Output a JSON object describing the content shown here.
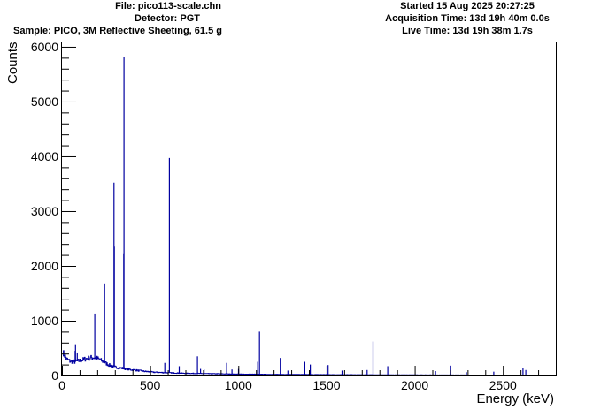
{
  "header": {
    "file": "File: pico113-scale.chn",
    "detector": "Detector: PGT",
    "sample": "Sample: PICO, 3M Reflective Sheeting, 61.5 g",
    "started": "Started 15 Aug 2025 20:27:25",
    "acquisition": "Acquisition Time: 13d 19h 40m 0.0s",
    "live": "Live Time: 13d 19h 38m 1.7s"
  },
  "chart_data": {
    "type": "line",
    "title": "",
    "xlabel": "Energy (keV)",
    "ylabel": "Counts",
    "xlim": [
      0,
      2800
    ],
    "ylim": [
      0,
      6080
    ],
    "x_ticks": [
      0,
      500,
      1000,
      1500,
      2000,
      2500
    ],
    "y_ticks": [
      0,
      1000,
      2000,
      3000,
      4000,
      5000,
      6000
    ],
    "grid": false,
    "line_color": "#0000a0",
    "continuum": [
      [
        5,
        420
      ],
      [
        12,
        380
      ],
      [
        25,
        300
      ],
      [
        45,
        260
      ],
      [
        70,
        250
      ],
      [
        100,
        270
      ],
      [
        140,
        310
      ],
      [
        175,
        330
      ],
      [
        200,
        310
      ],
      [
        230,
        260
      ],
      [
        260,
        200
      ],
      [
        290,
        160
      ],
      [
        320,
        140
      ],
      [
        350,
        130
      ],
      [
        380,
        110
      ],
      [
        420,
        95
      ],
      [
        470,
        75
      ],
      [
        520,
        60
      ],
      [
        600,
        50
      ],
      [
        700,
        40
      ],
      [
        800,
        35
      ],
      [
        900,
        30
      ],
      [
        1000,
        25
      ],
      [
        1200,
        20
      ],
      [
        1400,
        17
      ],
      [
        1600,
        14
      ],
      [
        1800,
        12
      ],
      [
        2000,
        10
      ],
      [
        2300,
        8
      ],
      [
        2600,
        6
      ],
      [
        2800,
        5
      ]
    ],
    "peaks": [
      [
        75,
        450
      ],
      [
        77,
        570
      ],
      [
        87,
        420
      ],
      [
        186,
        1130
      ],
      [
        242,
        1680
      ],
      [
        240,
        830
      ],
      [
        295,
        3520
      ],
      [
        297,
        2350
      ],
      [
        352,
        5810
      ],
      [
        350,
        2230
      ],
      [
        583,
        230
      ],
      [
        609,
        3970
      ],
      [
        665,
        170
      ],
      [
        768,
        350
      ],
      [
        786,
        120
      ],
      [
        806,
        110
      ],
      [
        934,
        230
      ],
      [
        964,
        110
      ],
      [
        1001,
        120
      ],
      [
        1120,
        800
      ],
      [
        1110,
        250
      ],
      [
        1238,
        320
      ],
      [
        1281,
        90
      ],
      [
        1377,
        250
      ],
      [
        1408,
        200
      ],
      [
        1509,
        190
      ],
      [
        1588,
        90
      ],
      [
        1730,
        100
      ],
      [
        1764,
        620
      ],
      [
        1847,
        170
      ],
      [
        2118,
        80
      ],
      [
        2204,
        180
      ],
      [
        2293,
        60
      ],
      [
        2448,
        70
      ],
      [
        2505,
        170
      ],
      [
        2614,
        130
      ],
      [
        2630,
        100
      ]
    ]
  }
}
